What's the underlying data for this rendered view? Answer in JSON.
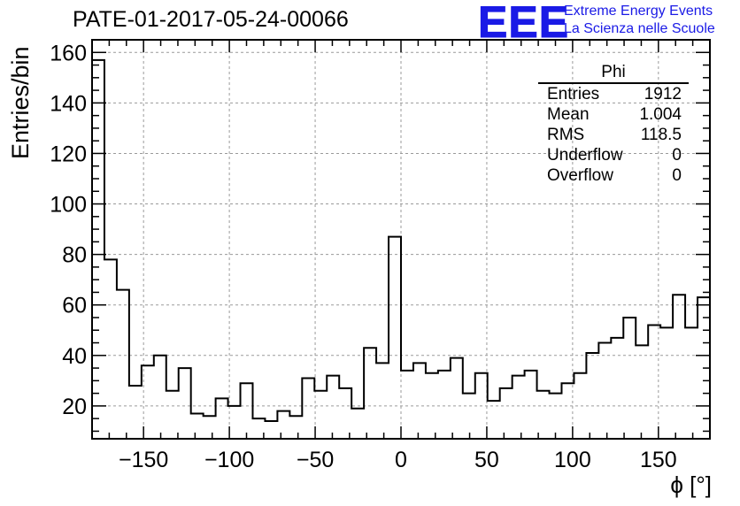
{
  "header": {
    "title": "PATE-01-2017-05-24-00066",
    "logo_text": "EEE",
    "logo_line1": "Extreme Energy Events",
    "logo_line2": "La Scienza nelle Scuole"
  },
  "stats": {
    "name": "Phi",
    "rows": [
      {
        "label": "Entries",
        "value": "1912"
      },
      {
        "label": "Mean",
        "value": "1.004"
      },
      {
        "label": "RMS",
        "value": "118.5"
      },
      {
        "label": "Underflow",
        "value": "0"
      },
      {
        "label": "Overflow",
        "value": "0"
      }
    ]
  },
  "colors": {
    "line": "#000000",
    "grid": "#9a9a9a",
    "logo": "#1a1ae6"
  },
  "chart_data": {
    "type": "histogram",
    "xlabel": "ϕ [°]",
    "ylabel": "Entries/bin",
    "xlim": [
      -180,
      180
    ],
    "ylim": [
      7,
      165
    ],
    "bin_width": 7.2,
    "x_ticks": [
      -150,
      -100,
      -50,
      0,
      50,
      100,
      150
    ],
    "y_ticks": [
      20,
      40,
      60,
      80,
      100,
      120,
      140,
      160
    ],
    "grid": true,
    "values": [
      157,
      78,
      66,
      28,
      36,
      40,
      26,
      35,
      17,
      16,
      23,
      20,
      29,
      15,
      14,
      18,
      16,
      31,
      26,
      32,
      27,
      19,
      43,
      37,
      87,
      34,
      37,
      33,
      34,
      39,
      25,
      33,
      22,
      27,
      32,
      34,
      26,
      25,
      29,
      33,
      41,
      45,
      47,
      55,
      44,
      52,
      51,
      64,
      51,
      63
    ]
  }
}
